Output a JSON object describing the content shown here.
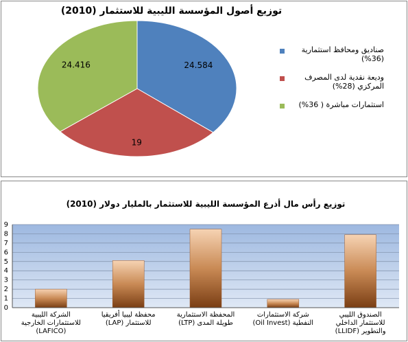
{
  "chart_data": [
    {
      "type": "pie",
      "title": "توزيع أصول المؤسسة الليبية للاستثمار (2010)",
      "categories": [
        "صناديق ومحافظ استثمارية (36%)",
        "وديعة نقدية لدى المصرف المركزي (28%)",
        "استثمارات مباشرة ( 36%)"
      ],
      "values": [
        24.584,
        19,
        24.416
      ],
      "colors": [
        "#4f81bd",
        "#c0504d",
        "#9bbb59"
      ]
    },
    {
      "type": "bar",
      "title": "توزيع رأس مال أذرع المؤسسة الليبية للاستثمار بالمليار دولار (2010)",
      "categories": [
        "الشركة الليبية للاستثمارات الخارجية (LAFICO)",
        "محفظة ليبيا أفريقيا للاستثمار (LAP)",
        "المحفظة الاستثمارية طويلة المدى (LTP)",
        "شركة الاستثمارات النفطية (Oil Invest)",
        "الصندوق الليبي للاستثمار الداخلي والتطوير (LLIDF)"
      ],
      "values": [
        2.0,
        5.1,
        8.5,
        0.9,
        7.9
      ],
      "color": "#9c5a2c",
      "ylim": [
        0,
        9
      ],
      "yticks": [
        0,
        1,
        2,
        3,
        4,
        5,
        6,
        7,
        8,
        9
      ],
      "grid": true
    }
  ]
}
